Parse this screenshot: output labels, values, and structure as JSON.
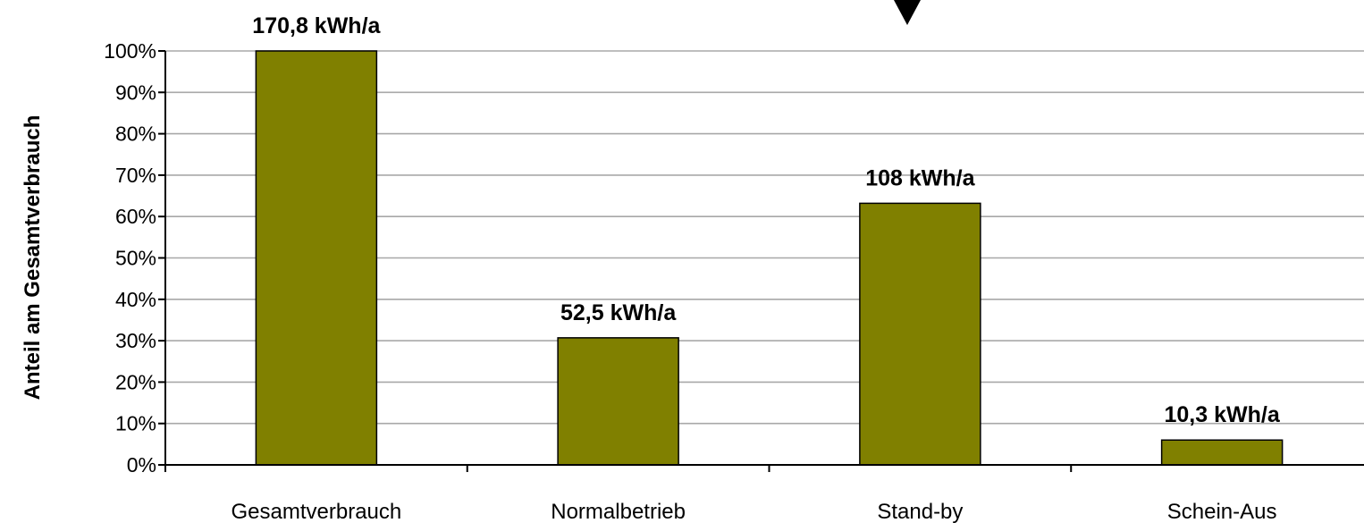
{
  "chart_data": {
    "type": "bar",
    "categories": [
      "Gesamtverbrauch",
      "Normalbetrieb",
      "Stand-by",
      "Schein-Aus"
    ],
    "values": [
      100,
      30.7,
      63.2,
      6.0
    ],
    "data_labels": [
      "170,8 kWh/a",
      "52,5 kWh/a",
      "108 kWh/a",
      "10,3 kWh/a"
    ],
    "ylabel": "Anteil am Gesamtverbrauch",
    "xlabel": "",
    "ylim": [
      0,
      100
    ],
    "yticks": [
      "0%",
      "10%",
      "20%",
      "30%",
      "40%",
      "50%",
      "60%",
      "70%",
      "80%",
      "90%",
      "100%"
    ],
    "grid": true,
    "bar_color": "#808000"
  },
  "marker_color": "#000000"
}
